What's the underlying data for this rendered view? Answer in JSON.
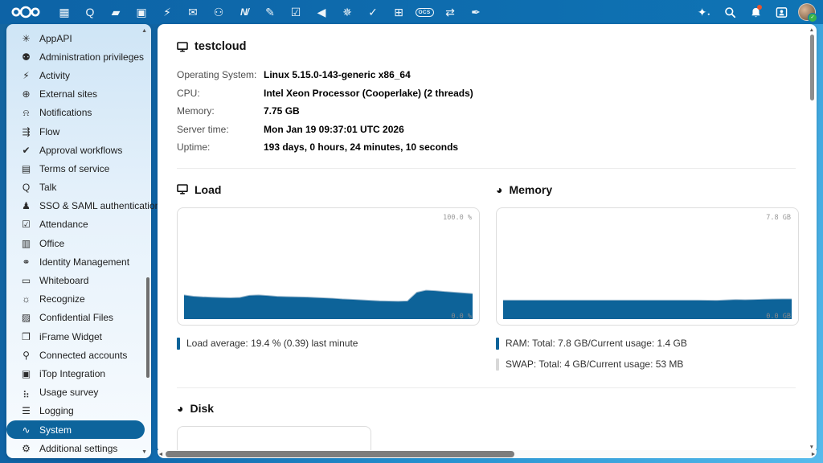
{
  "header": {
    "apps": [
      {
        "name": "dashboard",
        "icon": "▦"
      },
      {
        "name": "talk",
        "icon": "Q"
      },
      {
        "name": "files",
        "icon": "▰"
      },
      {
        "name": "photos",
        "icon": "▣"
      },
      {
        "name": "activity",
        "icon": "⚡"
      },
      {
        "name": "mail",
        "icon": "✉"
      },
      {
        "name": "contacts",
        "icon": "⚇"
      },
      {
        "name": "analytics",
        "icon": "N/",
        "style": "slash"
      },
      {
        "name": "notes",
        "icon": "✎"
      },
      {
        "name": "tasks",
        "icon": "☑"
      },
      {
        "name": "announcements",
        "icon": "◀"
      },
      {
        "name": "recommendations",
        "icon": "✵"
      },
      {
        "name": "approval",
        "icon": "✓"
      },
      {
        "name": "tables",
        "icon": "⊞"
      },
      {
        "name": "ocs",
        "icon": "OCS",
        "style": "pill"
      },
      {
        "name": "workflow",
        "icon": "⇄"
      },
      {
        "name": "signature",
        "icon": "✒"
      }
    ],
    "right_icons": [
      "assistant-icon",
      "search-icon",
      "notifications-bell-icon",
      "contacts-menu-icon",
      "user-avatar"
    ],
    "notification_badge": true,
    "avatar_status_check": "✓"
  },
  "sidebar": {
    "scroll_up": "▲",
    "scroll_down": "▼",
    "items": [
      {
        "label": "AppAPI",
        "icon": "✳",
        "icon_name": "asterisk-icon"
      },
      {
        "label": "Administration privileges",
        "icon": "⚉",
        "icon_name": "user-settings-icon"
      },
      {
        "label": "Activity",
        "icon": "⚡",
        "icon_name": "lightning-icon"
      },
      {
        "label": "External sites",
        "icon": "⊕",
        "icon_name": "globe-icon"
      },
      {
        "label": "Notifications",
        "icon": "⍾",
        "icon_name": "bell-icon"
      },
      {
        "label": "Flow",
        "icon": "⇶",
        "icon_name": "flow-icon"
      },
      {
        "label": "Approval workflows",
        "icon": "✔",
        "icon_name": "check-icon"
      },
      {
        "label": "Terms of service",
        "icon": "▤",
        "icon_name": "document-icon"
      },
      {
        "label": "Talk",
        "icon": "Q",
        "icon_name": "talk-icon"
      },
      {
        "label": "SSO & SAML authentication",
        "icon": "♟",
        "icon_name": "user-icon"
      },
      {
        "label": "Attendance",
        "icon": "☑",
        "icon_name": "checklist-icon"
      },
      {
        "label": "Office",
        "icon": "▥",
        "icon_name": "office-document-icon"
      },
      {
        "label": "Identity Management",
        "icon": "⚭",
        "icon_name": "users-icon"
      },
      {
        "label": "Whiteboard",
        "icon": "▭",
        "icon_name": "whiteboard-icon"
      },
      {
        "label": "Recognize",
        "icon": "☼",
        "icon_name": "lightbulb-icon"
      },
      {
        "label": "Confidential Files",
        "icon": "▨",
        "icon_name": "file-lock-icon"
      },
      {
        "label": "iFrame Widget",
        "icon": "❒",
        "icon_name": "iframe-icon"
      },
      {
        "label": "Connected accounts",
        "icon": "⚲",
        "icon_name": "plug-icon"
      },
      {
        "label": "iTop Integration",
        "icon": "▣",
        "icon_name": "itop-icon"
      },
      {
        "label": "Usage survey",
        "icon": "⣦",
        "icon_name": "bar-chart-icon"
      },
      {
        "label": "Logging",
        "icon": "☰",
        "icon_name": "list-icon"
      },
      {
        "label": "System",
        "icon": "∿",
        "icon_name": "pulse-icon",
        "selected": true
      },
      {
        "label": "Additional settings",
        "icon": "⚙",
        "icon_name": "gear-icon"
      }
    ]
  },
  "system": {
    "title": "testcloud",
    "rows": [
      {
        "label": "Operating System:",
        "value": "Linux 5.15.0-143-generic x86_64"
      },
      {
        "label": "CPU:",
        "value": "Intel Xeon Processor (Cooperlake) (2 threads)"
      },
      {
        "label": "Memory:",
        "value": "7.75 GB"
      },
      {
        "label": "Server time:",
        "value": "Mon Jan 19 09:37:01 UTC 2026"
      },
      {
        "label": "Uptime:",
        "value": "193 days, 0 hours, 24 minutes, 10 seconds"
      }
    ]
  },
  "sections": {
    "load": "Load",
    "memory": "Memory",
    "disk": "Disk"
  },
  "colors": {
    "chart_blue": "#0d6399",
    "swap_gray": "#d8d8d8",
    "selected_pill": "#0d649c"
  },
  "chart_data": [
    {
      "name": "load",
      "type": "area",
      "title": "Load",
      "ylim": [
        0,
        100
      ],
      "max_label": "100.0 %",
      "min_label": "0.0 %",
      "color": "#0d6399",
      "values": [
        23,
        21.8,
        21.2,
        20.8,
        20.5,
        20.3,
        20.6,
        22.6,
        23,
        22.4,
        21.7,
        21.4,
        21.2,
        21,
        20.6,
        20.2,
        19.8,
        19.2,
        18.8,
        18.3,
        17.8,
        17.4,
        17.2,
        17,
        17.3,
        25.5,
        27.5,
        27,
        26.2,
        25.6,
        24.9,
        24.2
      ],
      "legend": [
        {
          "label": "Load average: 19.4 % (0.39) last minute",
          "color": "#0d6399"
        }
      ]
    },
    {
      "name": "memory",
      "type": "area",
      "title": "Memory",
      "ylim_label": [
        "0.0 GB",
        "7.8 GB"
      ],
      "max_label": "7.8 GB",
      "min_label": "0.0 GB",
      "color": "#0d6399",
      "values": [
        18,
        18,
        18,
        18,
        18,
        18,
        18,
        18,
        18,
        18,
        18,
        18,
        18,
        18,
        18,
        18,
        18,
        18,
        18,
        18,
        18,
        18,
        17.9,
        17.8,
        18.2,
        18.6,
        18.4,
        18.6,
        18.9,
        19.1,
        19.2,
        19.2
      ],
      "legend": [
        {
          "label": "RAM: Total: 7.8 GB/Current usage: 1.4 GB",
          "color": "#0d6399"
        },
        {
          "label": "SWAP: Total: 4 GB/Current usage: 53 MB",
          "color": "#d8d8d8"
        }
      ]
    }
  ]
}
